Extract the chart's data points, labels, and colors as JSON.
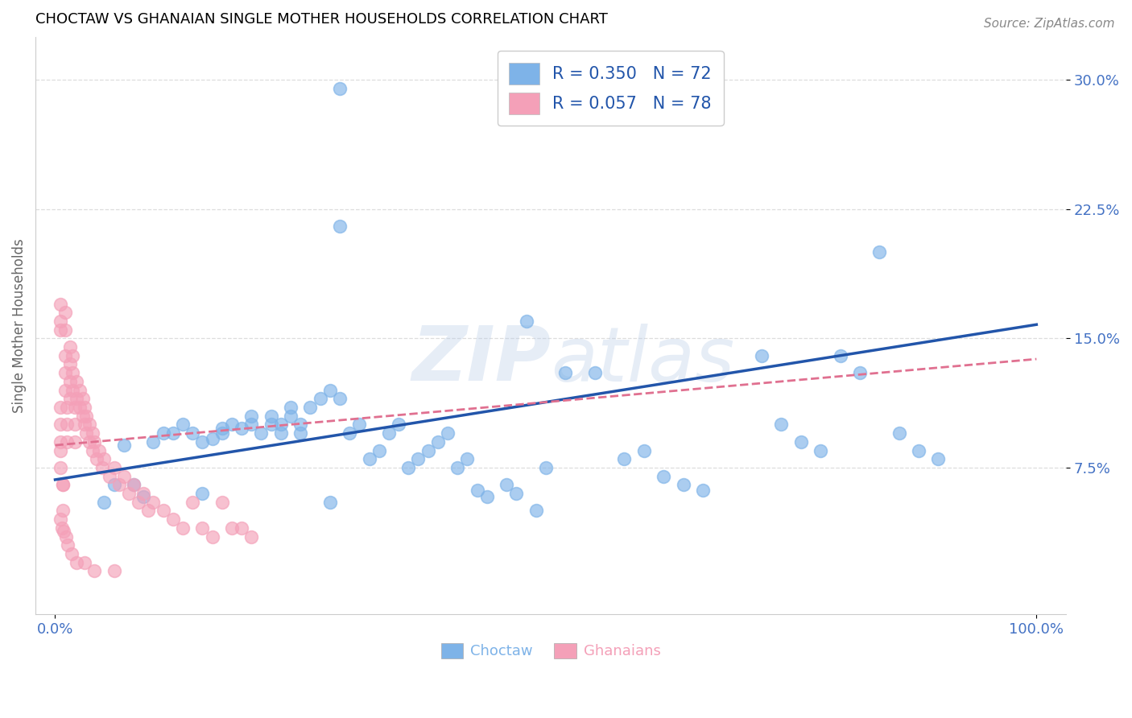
{
  "title": "CHOCTAW VS GHANAIAN SINGLE MOTHER HOUSEHOLDS CORRELATION CHART",
  "source": "Source: ZipAtlas.com",
  "ylabel": "Single Mother Households",
  "watermark": "ZIPatlas",
  "choctaw_R": 0.35,
  "choctaw_N": 72,
  "ghanaian_R": 0.057,
  "ghanaian_N": 78,
  "choctaw_color": "#7EB3E8",
  "ghanaian_color": "#F4A0B8",
  "choctaw_line_color": "#2255AA",
  "ghanaian_line_color": "#E07090",
  "choctaw_x": [
    0.29,
    0.29,
    0.06,
    0.08,
    0.1,
    0.11,
    0.12,
    0.13,
    0.14,
    0.15,
    0.16,
    0.17,
    0.17,
    0.18,
    0.19,
    0.2,
    0.2,
    0.21,
    0.22,
    0.22,
    0.23,
    0.23,
    0.24,
    0.24,
    0.25,
    0.25,
    0.26,
    0.27,
    0.28,
    0.29,
    0.3,
    0.31,
    0.32,
    0.33,
    0.34,
    0.35,
    0.36,
    0.37,
    0.38,
    0.39,
    0.4,
    0.41,
    0.42,
    0.43,
    0.44,
    0.46,
    0.47,
    0.49,
    0.5,
    0.52,
    0.55,
    0.58,
    0.6,
    0.62,
    0.64,
    0.66,
    0.72,
    0.74,
    0.76,
    0.78,
    0.8,
    0.82,
    0.84,
    0.86,
    0.88,
    0.9,
    0.05,
    0.07,
    0.09,
    0.15,
    0.28,
    0.48
  ],
  "choctaw_y": [
    0.295,
    0.215,
    0.065,
    0.065,
    0.09,
    0.095,
    0.095,
    0.1,
    0.095,
    0.09,
    0.092,
    0.095,
    0.098,
    0.1,
    0.098,
    0.1,
    0.105,
    0.095,
    0.1,
    0.105,
    0.095,
    0.1,
    0.105,
    0.11,
    0.095,
    0.1,
    0.11,
    0.115,
    0.12,
    0.115,
    0.095,
    0.1,
    0.08,
    0.085,
    0.095,
    0.1,
    0.075,
    0.08,
    0.085,
    0.09,
    0.095,
    0.075,
    0.08,
    0.062,
    0.058,
    0.065,
    0.06,
    0.05,
    0.075,
    0.13,
    0.13,
    0.08,
    0.085,
    0.07,
    0.065,
    0.062,
    0.14,
    0.1,
    0.09,
    0.085,
    0.14,
    0.13,
    0.2,
    0.095,
    0.085,
    0.08,
    0.055,
    0.088,
    0.058,
    0.06,
    0.055,
    0.16
  ],
  "ghanaian_x": [
    0.005,
    0.005,
    0.005,
    0.005,
    0.005,
    0.005,
    0.005,
    0.005,
    0.008,
    0.008,
    0.008,
    0.01,
    0.01,
    0.01,
    0.01,
    0.01,
    0.012,
    0.012,
    0.012,
    0.015,
    0.015,
    0.015,
    0.015,
    0.018,
    0.018,
    0.018,
    0.02,
    0.02,
    0.02,
    0.022,
    0.022,
    0.025,
    0.025,
    0.028,
    0.028,
    0.03,
    0.03,
    0.032,
    0.032,
    0.035,
    0.035,
    0.038,
    0.038,
    0.04,
    0.042,
    0.045,
    0.048,
    0.05,
    0.055,
    0.06,
    0.065,
    0.07,
    0.075,
    0.08,
    0.085,
    0.09,
    0.095,
    0.1,
    0.11,
    0.12,
    0.13,
    0.14,
    0.15,
    0.16,
    0.17,
    0.18,
    0.19,
    0.2,
    0.005,
    0.007,
    0.009,
    0.011,
    0.013,
    0.017,
    0.022,
    0.03,
    0.04,
    0.06
  ],
  "ghanaian_y": [
    0.16,
    0.155,
    0.17,
    0.11,
    0.1,
    0.09,
    0.085,
    0.075,
    0.065,
    0.065,
    0.05,
    0.165,
    0.155,
    0.14,
    0.13,
    0.12,
    0.11,
    0.1,
    0.09,
    0.145,
    0.135,
    0.125,
    0.115,
    0.14,
    0.13,
    0.12,
    0.11,
    0.1,
    0.09,
    0.125,
    0.115,
    0.12,
    0.11,
    0.115,
    0.105,
    0.11,
    0.1,
    0.105,
    0.095,
    0.1,
    0.09,
    0.095,
    0.085,
    0.09,
    0.08,
    0.085,
    0.075,
    0.08,
    0.07,
    0.075,
    0.065,
    0.07,
    0.06,
    0.065,
    0.055,
    0.06,
    0.05,
    0.055,
    0.05,
    0.045,
    0.04,
    0.055,
    0.04,
    0.035,
    0.055,
    0.04,
    0.04,
    0.035,
    0.045,
    0.04,
    0.038,
    0.035,
    0.03,
    0.025,
    0.02,
    0.02,
    0.015,
    0.015
  ],
  "choctaw_line": [
    0.0,
    1.0,
    0.068,
    0.158
  ],
  "ghanaian_line": [
    0.0,
    1.0,
    0.088,
    0.138
  ],
  "xlim": [
    -0.02,
    1.03
  ],
  "ylim": [
    -0.01,
    0.325
  ],
  "yticks": [
    0.075,
    0.15,
    0.225,
    0.3
  ],
  "ytick_labels": [
    "7.5%",
    "15.0%",
    "22.5%",
    "30.0%"
  ],
  "xtick_labels": [
    "0.0%",
    "100.0%"
  ],
  "bg_color": "#FFFFFF",
  "grid_color": "#DDDDDD",
  "title_fontsize": 13,
  "tick_color": "#4472C4",
  "source_color": "#888888",
  "ylabel_color": "#666666"
}
